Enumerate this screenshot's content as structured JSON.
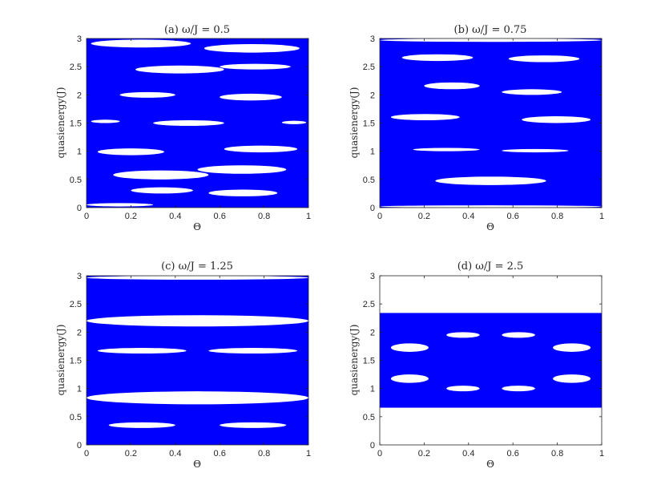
{
  "figure": {
    "colors": {
      "band": "#0000ff",
      "axis": "#262626",
      "background": "#ffffff"
    }
  },
  "chart_data": [
    {
      "type": "heatmap",
      "title": "(a) ω/J = 0.5",
      "xlabel": "Θ",
      "ylabel": "quasienergy(J)",
      "xlim": [
        0,
        1
      ],
      "ylim": [
        0,
        3
      ],
      "xticks": [
        "0",
        "0.2",
        "0.4",
        "0.6",
        "0.8",
        "1"
      ],
      "yticks": [
        "0",
        "0.5",
        "1",
        "1.5",
        "2",
        "2.5",
        "3"
      ],
      "series_color": "#0000ff",
      "gaps": [
        {
          "x0": 0.02,
          "x1": 0.47,
          "y0": 2.84,
          "y1": 2.98
        },
        {
          "x0": 0.53,
          "x1": 0.96,
          "y0": 2.75,
          "y1": 2.9
        },
        {
          "x0": 0.22,
          "x1": 0.62,
          "y0": 2.38,
          "y1": 2.52
        },
        {
          "x0": 0.6,
          "x1": 0.92,
          "y0": 2.45,
          "y1": 2.55
        },
        {
          "x0": 0.15,
          "x1": 0.4,
          "y0": 1.95,
          "y1": 2.05
        },
        {
          "x0": 0.6,
          "x1": 0.88,
          "y0": 1.9,
          "y1": 2.02
        },
        {
          "x0": 0.02,
          "x1": 0.15,
          "y0": 1.5,
          "y1": 1.56
        },
        {
          "x0": 0.3,
          "x1": 0.62,
          "y0": 1.45,
          "y1": 1.55
        },
        {
          "x0": 0.88,
          "x1": 0.99,
          "y0": 1.48,
          "y1": 1.54
        },
        {
          "x0": 0.05,
          "x1": 0.35,
          "y0": 0.93,
          "y1": 1.05
        },
        {
          "x0": 0.62,
          "x1": 0.95,
          "y0": 0.98,
          "y1": 1.1
        },
        {
          "x0": 0.12,
          "x1": 0.55,
          "y0": 0.5,
          "y1": 0.66
        },
        {
          "x0": 0.5,
          "x1": 0.9,
          "y0": 0.6,
          "y1": 0.75
        },
        {
          "x0": 0.2,
          "x1": 0.48,
          "y0": 0.25,
          "y1": 0.36
        },
        {
          "x0": 0.55,
          "x1": 0.86,
          "y0": 0.2,
          "y1": 0.32
        },
        {
          "x0": 0.0,
          "x1": 0.3,
          "y0": 0.02,
          "y1": 0.08
        }
      ]
    },
    {
      "type": "heatmap",
      "title": "(b) ω/J = 0.75",
      "xlabel": "Θ",
      "ylabel": "quasienergy(J)",
      "xlim": [
        0,
        1
      ],
      "ylim": [
        0,
        3
      ],
      "xticks": [
        "0",
        "0.2",
        "0.4",
        "0.6",
        "0.8",
        "1"
      ],
      "yticks": [
        "0",
        "0.5",
        "1",
        "1.5",
        "2",
        "2.5",
        "3"
      ],
      "series_color": "#0000ff",
      "gaps": [
        {
          "x0": 0.0,
          "x1": 1.0,
          "y0": 2.94,
          "y1": 3.0
        },
        {
          "x0": 0.1,
          "x1": 0.42,
          "y0": 2.6,
          "y1": 2.72
        },
        {
          "x0": 0.58,
          "x1": 0.9,
          "y0": 2.58,
          "y1": 2.7
        },
        {
          "x0": 0.2,
          "x1": 0.45,
          "y0": 2.1,
          "y1": 2.22
        },
        {
          "x0": 0.55,
          "x1": 0.82,
          "y0": 2.0,
          "y1": 2.1
        },
        {
          "x0": 0.05,
          "x1": 0.36,
          "y0": 1.55,
          "y1": 1.66
        },
        {
          "x0": 0.64,
          "x1": 0.95,
          "y0": 1.5,
          "y1": 1.62
        },
        {
          "x0": 0.15,
          "x1": 0.45,
          "y0": 1.0,
          "y1": 1.06
        },
        {
          "x0": 0.55,
          "x1": 0.85,
          "y0": 0.98,
          "y1": 1.04
        },
        {
          "x0": 0.25,
          "x1": 0.75,
          "y0": 0.4,
          "y1": 0.55
        },
        {
          "x0": 0.0,
          "x1": 1.0,
          "y0": 0.0,
          "y1": 0.04
        }
      ]
    },
    {
      "type": "heatmap",
      "title": "(c) ω/J = 1.25",
      "xlabel": "Θ",
      "ylabel": "quasienergy(J)",
      "xlim": [
        0,
        1
      ],
      "ylim": [
        0,
        3
      ],
      "xticks": [
        "0",
        "0.2",
        "0.4",
        "0.6",
        "0.8",
        "1"
      ],
      "yticks": [
        "0",
        "0.5",
        "1",
        "1.5",
        "2",
        "2.5",
        "3"
      ],
      "series_color": "#0000ff",
      "gaps": [
        {
          "x0": 0.0,
          "x1": 1.0,
          "y0": 2.93,
          "y1": 3.0
        },
        {
          "x0": 0.0,
          "x1": 1.0,
          "y0": 2.1,
          "y1": 2.3
        },
        {
          "x0": 0.05,
          "x1": 0.45,
          "y0": 1.62,
          "y1": 1.72
        },
        {
          "x0": 0.55,
          "x1": 0.95,
          "y0": 1.62,
          "y1": 1.72
        },
        {
          "x0": 0.0,
          "x1": 1.0,
          "y0": 0.72,
          "y1": 0.95
        },
        {
          "x0": 0.1,
          "x1": 0.4,
          "y0": 0.3,
          "y1": 0.4
        },
        {
          "x0": 0.6,
          "x1": 0.9,
          "y0": 0.3,
          "y1": 0.4
        }
      ]
    },
    {
      "type": "heatmap",
      "title": "(d) ω/J = 2.5",
      "xlabel": "Θ",
      "ylabel": "quasienergy(J)",
      "xlim": [
        0,
        1
      ],
      "ylim": [
        0,
        3
      ],
      "xticks": [
        "0",
        "0.2",
        "0.4",
        "0.6",
        "0.8",
        "1"
      ],
      "yticks": [
        "0",
        "0.5",
        "1",
        "1.5",
        "2",
        "2.5",
        "3"
      ],
      "series_color": "#0000ff",
      "bands": [
        {
          "y0": 0.66,
          "y1": 2.34
        }
      ],
      "gaps": [
        {
          "x0": 0.05,
          "x1": 0.22,
          "y0": 1.65,
          "y1": 1.8
        },
        {
          "x0": 0.3,
          "x1": 0.45,
          "y0": 1.9,
          "y1": 2.0
        },
        {
          "x0": 0.55,
          "x1": 0.7,
          "y0": 1.9,
          "y1": 2.0
        },
        {
          "x0": 0.78,
          "x1": 0.95,
          "y0": 1.65,
          "y1": 1.8
        },
        {
          "x0": 0.05,
          "x1": 0.22,
          "y0": 1.1,
          "y1": 1.25
        },
        {
          "x0": 0.3,
          "x1": 0.45,
          "y0": 0.95,
          "y1": 1.05
        },
        {
          "x0": 0.55,
          "x1": 0.7,
          "y0": 0.95,
          "y1": 1.05
        },
        {
          "x0": 0.78,
          "x1": 0.95,
          "y0": 1.1,
          "y1": 1.25
        }
      ]
    }
  ]
}
